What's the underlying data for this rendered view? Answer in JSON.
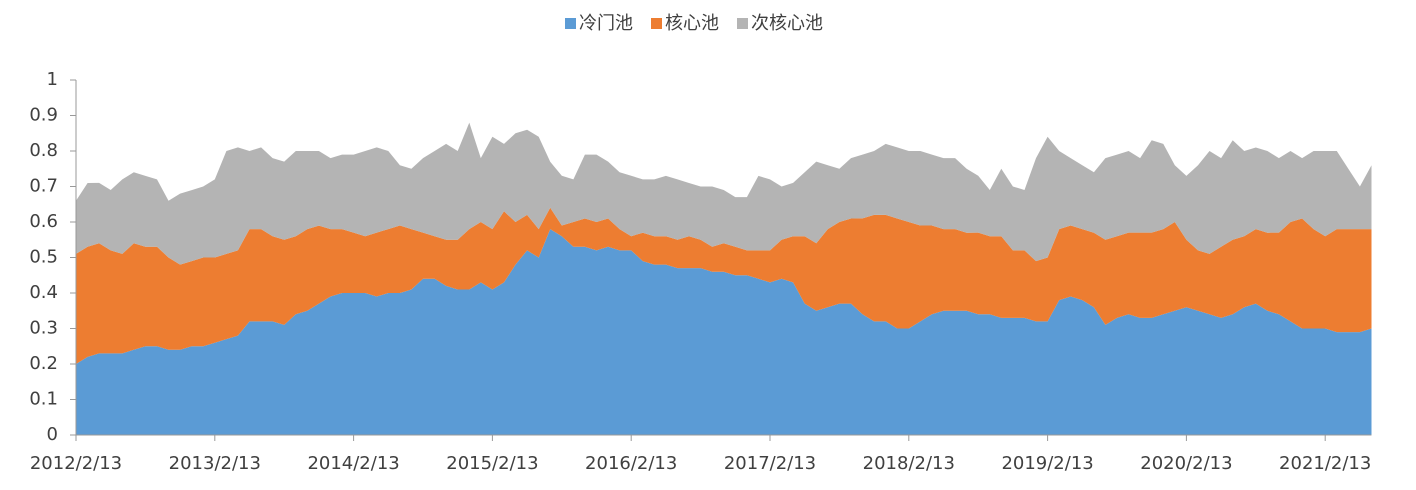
{
  "chart_data": {
    "type": "stacked-area",
    "categories": [
      "2012/2/13",
      null,
      null,
      null,
      null,
      null,
      null,
      null,
      null,
      null,
      null,
      null,
      "2013/2/13",
      null,
      null,
      null,
      null,
      null,
      null,
      null,
      null,
      null,
      null,
      null,
      "2014/2/13",
      null,
      null,
      null,
      null,
      null,
      null,
      null,
      null,
      null,
      null,
      null,
      "2015/2/13",
      null,
      null,
      null,
      null,
      null,
      null,
      null,
      null,
      null,
      null,
      null,
      "2016/2/13",
      null,
      null,
      null,
      null,
      null,
      null,
      null,
      null,
      null,
      null,
      null,
      "2017/2/13",
      null,
      null,
      null,
      null,
      null,
      null,
      null,
      null,
      null,
      null,
      null,
      "2018/2/13",
      null,
      null,
      null,
      null,
      null,
      null,
      null,
      null,
      null,
      null,
      null,
      "2019/2/13",
      null,
      null,
      null,
      null,
      null,
      null,
      null,
      null,
      null,
      null,
      null,
      "2020/2/13",
      null,
      null,
      null,
      null,
      null,
      null,
      null,
      null,
      null,
      null,
      null,
      "2021/2/13",
      null,
      null,
      null,
      null
    ],
    "series": [
      {
        "name": "冷门池",
        "color": "#5b9bd5",
        "values": [
          0.2,
          0.22,
          0.23,
          0.23,
          0.23,
          0.24,
          0.25,
          0.25,
          0.24,
          0.24,
          0.25,
          0.25,
          0.26,
          0.27,
          0.28,
          0.32,
          0.32,
          0.32,
          0.31,
          0.34,
          0.35,
          0.37,
          0.39,
          0.4,
          0.4,
          0.4,
          0.39,
          0.4,
          0.4,
          0.41,
          0.44,
          0.44,
          0.42,
          0.41,
          0.41,
          0.43,
          0.41,
          0.43,
          0.48,
          0.52,
          0.5,
          0.58,
          0.56,
          0.53,
          0.53,
          0.52,
          0.53,
          0.52,
          0.52,
          0.49,
          0.48,
          0.48,
          0.47,
          0.47,
          0.47,
          0.46,
          0.46,
          0.45,
          0.45,
          0.44,
          0.43,
          0.44,
          0.43,
          0.37,
          0.35,
          0.36,
          0.37,
          0.37,
          0.34,
          0.32,
          0.32,
          0.3,
          0.3,
          0.32,
          0.34,
          0.35,
          0.35,
          0.35,
          0.34,
          0.34,
          0.33,
          0.33,
          0.33,
          0.32,
          0.32,
          0.38,
          0.39,
          0.38,
          0.36,
          0.31,
          0.33,
          0.34,
          0.33,
          0.33,
          0.34,
          0.35,
          0.36,
          0.35,
          0.34,
          0.33,
          0.34,
          0.36,
          0.37,
          0.35,
          0.34,
          0.32,
          0.3,
          0.3,
          0.3,
          0.29,
          0.29,
          0.29,
          0.3
        ]
      },
      {
        "name": "核心池",
        "color": "#ed7d31",
        "values": [
          0.31,
          0.31,
          0.31,
          0.29,
          0.28,
          0.3,
          0.28,
          0.28,
          0.26,
          0.24,
          0.24,
          0.25,
          0.24,
          0.24,
          0.24,
          0.26,
          0.26,
          0.24,
          0.24,
          0.22,
          0.23,
          0.22,
          0.19,
          0.18,
          0.17,
          0.16,
          0.18,
          0.18,
          0.19,
          0.17,
          0.13,
          0.12,
          0.13,
          0.14,
          0.17,
          0.17,
          0.17,
          0.2,
          0.12,
          0.1,
          0.08,
          0.06,
          0.03,
          0.07,
          0.08,
          0.08,
          0.08,
          0.06,
          0.04,
          0.08,
          0.08,
          0.08,
          0.08,
          0.09,
          0.08,
          0.07,
          0.08,
          0.08,
          0.07,
          0.08,
          0.09,
          0.11,
          0.13,
          0.19,
          0.19,
          0.22,
          0.23,
          0.24,
          0.27,
          0.3,
          0.3,
          0.31,
          0.3,
          0.27,
          0.25,
          0.23,
          0.23,
          0.22,
          0.23,
          0.22,
          0.23,
          0.19,
          0.19,
          0.17,
          0.18,
          0.2,
          0.2,
          0.2,
          0.21,
          0.24,
          0.23,
          0.23,
          0.24,
          0.24,
          0.24,
          0.25,
          0.19,
          0.17,
          0.17,
          0.2,
          0.21,
          0.2,
          0.21,
          0.22,
          0.23,
          0.28,
          0.31,
          0.28,
          0.26,
          0.29,
          0.29,
          0.29,
          0.28
        ]
      },
      {
        "name": "次核心池",
        "color": "#b4b4b4",
        "values": [
          0.15,
          0.18,
          0.17,
          0.17,
          0.21,
          0.2,
          0.2,
          0.19,
          0.16,
          0.2,
          0.2,
          0.2,
          0.22,
          0.29,
          0.29,
          0.22,
          0.23,
          0.22,
          0.22,
          0.24,
          0.22,
          0.21,
          0.2,
          0.21,
          0.22,
          0.24,
          0.24,
          0.22,
          0.17,
          0.17,
          0.21,
          0.24,
          0.27,
          0.25,
          0.3,
          0.18,
          0.26,
          0.19,
          0.25,
          0.24,
          0.26,
          0.13,
          0.14,
          0.12,
          0.18,
          0.19,
          0.16,
          0.16,
          0.17,
          0.15,
          0.16,
          0.17,
          0.17,
          0.15,
          0.15,
          0.17,
          0.15,
          0.14,
          0.15,
          0.21,
          0.2,
          0.15,
          0.15,
          0.18,
          0.23,
          0.18,
          0.15,
          0.17,
          0.18,
          0.18,
          0.2,
          0.2,
          0.2,
          0.21,
          0.2,
          0.2,
          0.2,
          0.18,
          0.16,
          0.13,
          0.19,
          0.18,
          0.17,
          0.29,
          0.34,
          0.22,
          0.19,
          0.18,
          0.17,
          0.23,
          0.23,
          0.23,
          0.21,
          0.26,
          0.24,
          0.16,
          0.18,
          0.24,
          0.29,
          0.25,
          0.28,
          0.24,
          0.23,
          0.23,
          0.21,
          0.2,
          0.17,
          0.22,
          0.24,
          0.22,
          0.17,
          0.12,
          0.18
        ]
      }
    ],
    "ylim": [
      0,
      1
    ],
    "yticks": [
      0,
      0.1,
      0.2,
      0.3,
      0.4,
      0.5,
      0.6,
      0.7,
      0.8,
      0.9,
      1
    ],
    "legend": "top"
  }
}
